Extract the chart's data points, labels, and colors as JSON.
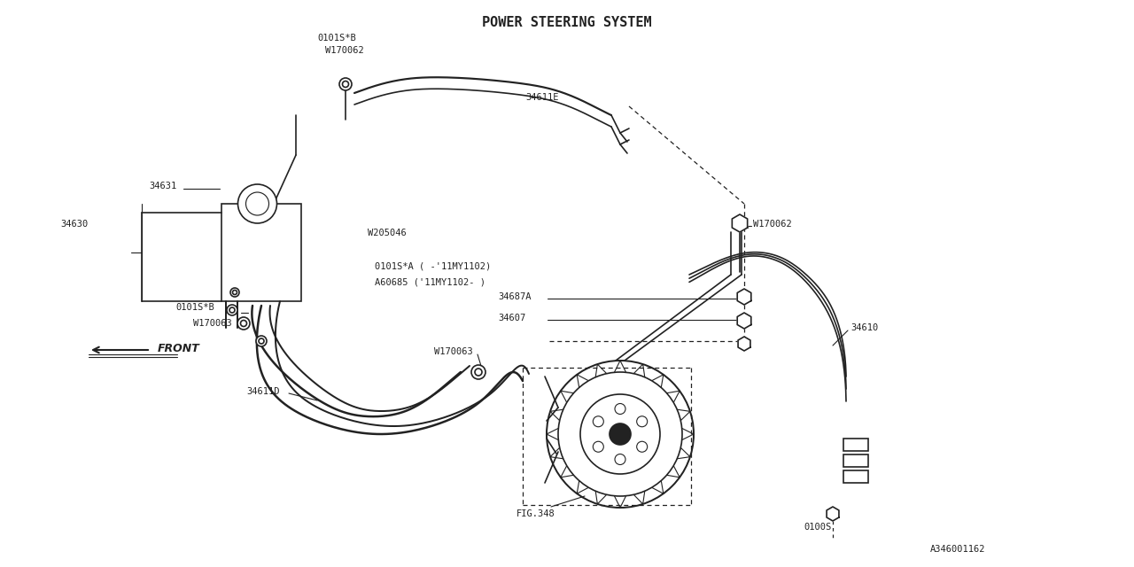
{
  "bg_color": "#FFFFFF",
  "line_color": "#222222",
  "text_color": "#222222",
  "title": "POWER STEERING SYSTEM",
  "diagram_id": "A346001162",
  "fig_ref": "FIG.348",
  "lw": 1.2,
  "font_size": 7.5,
  "title_font_size": 11
}
